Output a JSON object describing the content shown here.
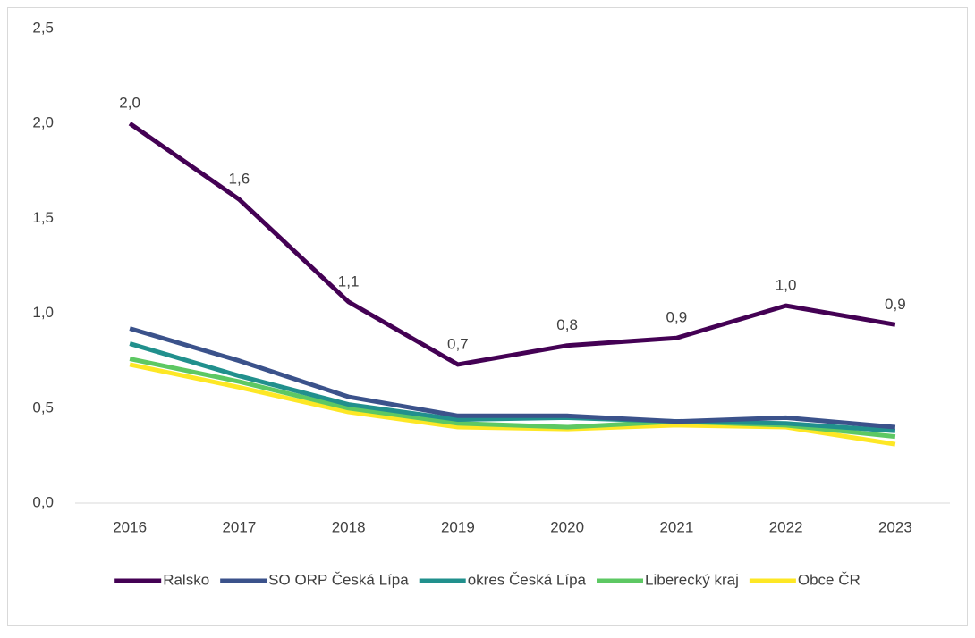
{
  "chart_data": {
    "type": "line",
    "categories": [
      "2016",
      "2017",
      "2018",
      "2019",
      "2020",
      "2021",
      "2022",
      "2023"
    ],
    "series": [
      {
        "name": "Ralsko",
        "color": "#440154",
        "values": [
          2.0,
          1.6,
          1.06,
          0.73,
          0.83,
          0.87,
          1.04,
          0.94
        ],
        "value_labels": [
          "2,0",
          "1,6",
          "1,1",
          "0,7",
          "0,8",
          "0,9",
          "1,0",
          "0,9"
        ]
      },
      {
        "name": "SO ORP Česká Lípa",
        "color": "#3b528b",
        "values": [
          0.92,
          0.75,
          0.56,
          0.46,
          0.46,
          0.43,
          0.45,
          0.4
        ]
      },
      {
        "name": "okres Česká Lípa",
        "color": "#21908d",
        "values": [
          0.84,
          0.67,
          0.52,
          0.44,
          0.45,
          0.43,
          0.42,
          0.38
        ]
      },
      {
        "name": "Liberecký kraj",
        "color": "#5dc863",
        "values": [
          0.76,
          0.64,
          0.5,
          0.42,
          0.4,
          0.43,
          0.41,
          0.35
        ]
      },
      {
        "name": "Obce ČR",
        "color": "#fde725",
        "values": [
          0.73,
          0.61,
          0.48,
          0.4,
          0.39,
          0.41,
          0.4,
          0.31
        ]
      }
    ],
    "ylim": [
      0,
      2.5
    ],
    "yticks": [
      {
        "value": 0,
        "label": "0,0"
      },
      {
        "value": 0.5,
        "label": "0,5"
      },
      {
        "value": 1,
        "label": "1,0"
      },
      {
        "value": 1.5,
        "label": "1,5"
      },
      {
        "value": 2,
        "label": "2,0"
      },
      {
        "value": 2.5,
        "label": "2,5"
      }
    ],
    "grid": false,
    "legend": "bottom"
  }
}
